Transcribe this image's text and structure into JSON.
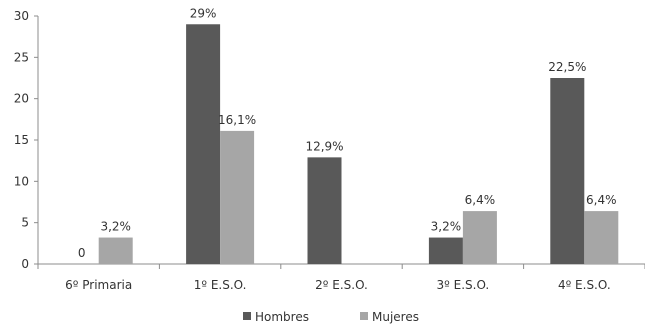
{
  "chart_data": {
    "type": "bar",
    "title": "",
    "xlabel": "",
    "ylabel": "",
    "ylim": [
      0,
      30
    ],
    "yticks": [
      0,
      5,
      10,
      15,
      20,
      25,
      30
    ],
    "categories": [
      "6º Primaria",
      "1º E.S.O.",
      "2º E.S.O.",
      "3º E.S.O.",
      "4º E.S.O."
    ],
    "series": [
      {
        "name": "Hombres",
        "color": "#595959",
        "values": [
          0,
          29,
          12.9,
          3.2,
          22.5
        ],
        "labels": [
          "0",
          "29%",
          "12,9%",
          "3,2%",
          "22,5%"
        ]
      },
      {
        "name": "Mujeres",
        "color": "#a6a6a6",
        "values": [
          3.2,
          16.1,
          0,
          6.4,
          6.4
        ],
        "labels": [
          "3,2%",
          "16,1%",
          "",
          "6,4%",
          "6,4%"
        ]
      }
    ],
    "grid": false,
    "legend_position": "bottom"
  }
}
